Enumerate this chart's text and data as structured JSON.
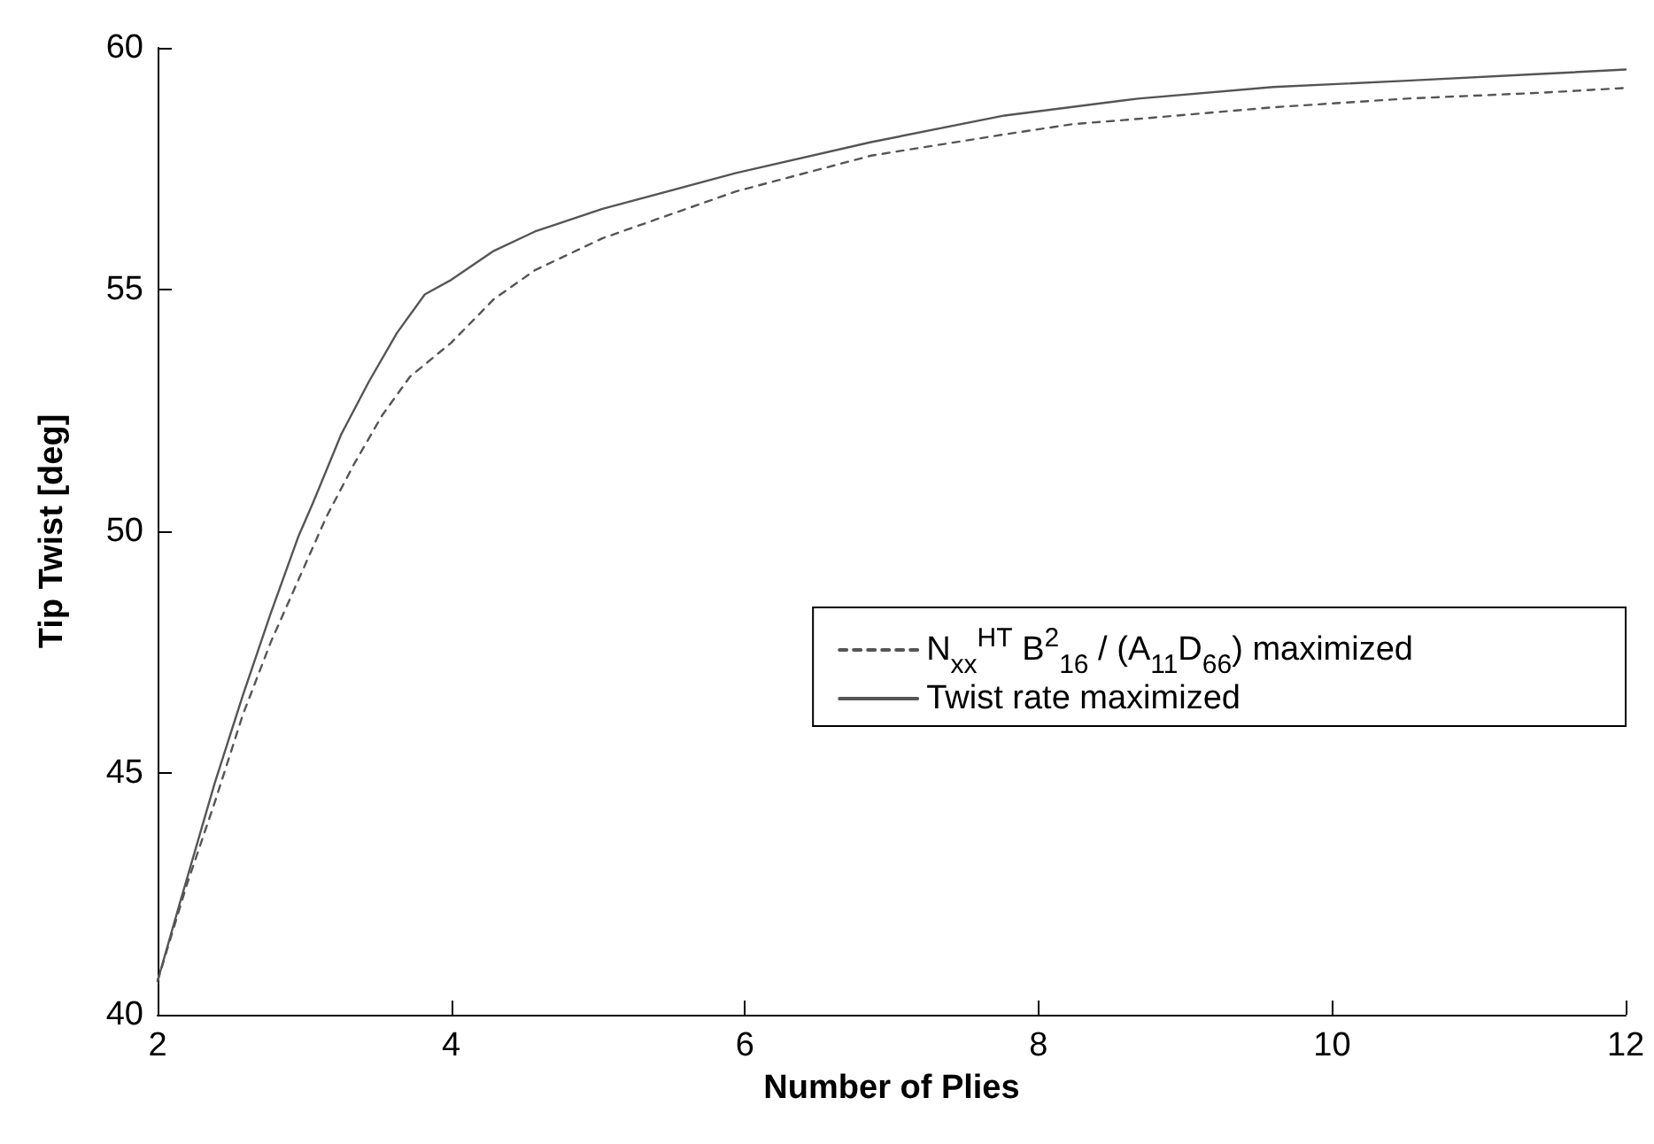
{
  "chart_data": {
    "type": "line",
    "xlabel": "Number of Plies",
    "ylabel": "Tip Twist [deg]",
    "xlim": [
      2,
      12
    ],
    "xticks": [
      2,
      4,
      6,
      8,
      10,
      12
    ],
    "ylim": [
      40,
      60
    ],
    "yticks": [
      40,
      45,
      50,
      55,
      60
    ],
    "grid": false,
    "legend": "right",
    "marker": "none",
    "series": [
      {
        "name": "N$_{xx}$$^{HT}$ B$^{2}$$_{16}$ / (A$_{11}$D$_{66}$) maximized",
        "color": "#555555",
        "line_style": "dashed",
        "x": [
          2,
          2.2,
          2.39,
          2.58,
          2.77,
          2.96,
          3.15,
          3.34,
          3.53,
          3.72,
          4,
          4.29,
          4.57,
          5.03,
          5.94,
          6.86,
          7.77,
          8.23,
          8.68,
          9.6,
          10.51,
          11.42,
          12
        ],
        "values": [
          40.7,
          42.7,
          44.4,
          46.2,
          47.7,
          49.0,
          50.3,
          51.4,
          52.4,
          53.2,
          53.9,
          54.8,
          55.4,
          56.06,
          57.03,
          57.77,
          58.21,
          58.42,
          58.53,
          58.77,
          58.95,
          59.07,
          59.17
        ]
      },
      {
        "name": "Twist rate maximized",
        "color": "#555555",
        "line_style": "solid",
        "x": [
          2,
          2.16,
          2.39,
          2.58,
          2.77,
          2.96,
          3.06,
          3.25,
          3.44,
          3.63,
          3.82,
          4,
          4.29,
          4.57,
          5.03,
          5.94,
          6.86,
          7.77,
          8.68,
          9.6,
          10.51,
          11.42,
          12
        ],
        "values": [
          40.7,
          42.4,
          44.8,
          46.6,
          48.3,
          49.9,
          50.6,
          52.0,
          53.1,
          54.1,
          54.9,
          55.2,
          55.8,
          56.2,
          56.67,
          57.41,
          58.05,
          58.6,
          58.95,
          59.19,
          59.32,
          59.46,
          59.55
        ]
      }
    ]
  }
}
